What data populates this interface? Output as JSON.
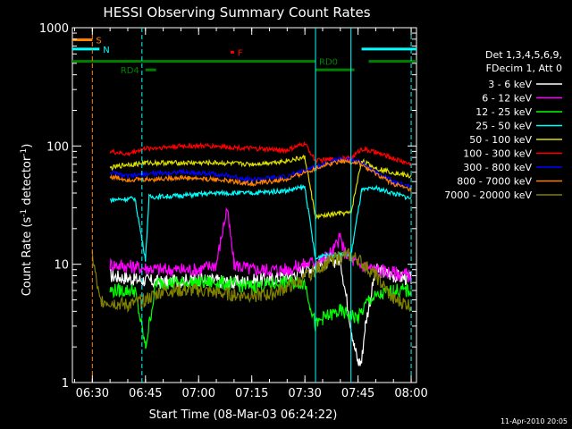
{
  "chart_data": {
    "type": "line",
    "title": "HESSI Observing Summary Count Rates",
    "xlabel": "Start Time (08-Mar-03 06:24:22)",
    "ylabel_main": "Count Rate (s",
    "ylabel_sup1": "-1",
    "ylabel_mid": " detector",
    "ylabel_sup2": "-1",
    "ylabel_end": ")",
    "footer": "11-Apr-2010 20:05",
    "yscale": "log",
    "ylim": [
      1,
      1000
    ],
    "xlim": [
      "06:24:22",
      "08:01:30"
    ],
    "x_ticks": [
      "06:30",
      "06:45",
      "07:00",
      "07:15",
      "07:30",
      "07:45",
      "08:00"
    ],
    "y_ticks": [
      "1",
      "10",
      "100",
      "1000"
    ],
    "legend_position": "right",
    "legend_header": [
      "Det 1,3,4,5,6,9,",
      "FDecim 1, Att 0"
    ],
    "series": [
      {
        "name": "3 - 6 keV",
        "color": "#ffffff",
        "points": [
          [
            "06:35",
            8
          ],
          [
            "06:42",
            7.5
          ],
          [
            "06:50",
            7
          ],
          [
            "07:00",
            7.5
          ],
          [
            "07:10",
            7
          ],
          [
            "07:20",
            7.5
          ],
          [
            "07:26",
            8
          ],
          [
            "07:30",
            9
          ],
          [
            "07:35",
            10
          ],
          [
            "07:40",
            11
          ],
          [
            "07:43",
            3
          ],
          [
            "07:44",
            2
          ],
          [
            "07:45",
            1.5
          ],
          [
            "07:46",
            1.5
          ],
          [
            "07:47",
            3
          ],
          [
            "07:50",
            9
          ],
          [
            "07:55",
            8
          ],
          [
            "08:00",
            7.5
          ]
        ]
      },
      {
        "name": "6 - 12 keV",
        "color": "#ff00ff",
        "points": [
          [
            "06:35",
            10
          ],
          [
            "06:42",
            9.5
          ],
          [
            "06:50",
            9
          ],
          [
            "07:00",
            9
          ],
          [
            "07:05",
            10
          ],
          [
            "07:08",
            30
          ],
          [
            "07:10",
            10
          ],
          [
            "07:15",
            9
          ],
          [
            "07:25",
            9
          ],
          [
            "07:30",
            10
          ],
          [
            "07:35",
            11
          ],
          [
            "07:38",
            13
          ],
          [
            "07:40",
            17
          ],
          [
            "07:41",
            13
          ],
          [
            "07:43",
            11
          ],
          [
            "07:45",
            10
          ],
          [
            "07:50",
            9
          ],
          [
            "08:00",
            8
          ]
        ]
      },
      {
        "name": "12 - 25 keV",
        "color": "#00ff00",
        "points": [
          [
            "06:35",
            6
          ],
          [
            "06:42",
            6
          ],
          [
            "06:45",
            2
          ],
          [
            "06:48",
            7
          ],
          [
            "06:55",
            7
          ],
          [
            "07:05",
            7
          ],
          [
            "07:15",
            6.5
          ],
          [
            "07:25",
            7
          ],
          [
            "07:30",
            7
          ],
          [
            "07:33",
            3
          ],
          [
            "07:35",
            3.5
          ],
          [
            "07:40",
            4
          ],
          [
            "07:45",
            3.5
          ],
          [
            "07:48",
            5
          ],
          [
            "07:55",
            6
          ],
          [
            "08:00",
            6
          ]
        ]
      },
      {
        "name": "25 - 50 keV",
        "color": "#00ffff",
        "points": [
          [
            "06:35",
            35
          ],
          [
            "06:42",
            36
          ],
          [
            "06:45",
            11
          ],
          [
            "06:46",
            37
          ],
          [
            "06:55",
            38
          ],
          [
            "07:05",
            40
          ],
          [
            "07:15",
            40
          ],
          [
            "07:25",
            42
          ],
          [
            "07:30",
            45
          ],
          [
            "07:33",
            11
          ],
          [
            "07:35",
            12
          ],
          [
            "07:40",
            12
          ],
          [
            "07:43",
            12
          ],
          [
            "07:46",
            42
          ],
          [
            "07:50",
            44
          ],
          [
            "08:00",
            36
          ]
        ]
      },
      {
        "name": "50 - 100 keV",
        "color": "#dddd00",
        "points": [
          [
            "06:35",
            65
          ],
          [
            "06:40",
            70
          ],
          [
            "06:42",
            70
          ],
          [
            "06:45",
            72
          ],
          [
            "06:55",
            72
          ],
          [
            "07:05",
            72
          ],
          [
            "07:15",
            70
          ],
          [
            "07:25",
            75
          ],
          [
            "07:30",
            80
          ],
          [
            "07:33",
            25
          ],
          [
            "07:40",
            27
          ],
          [
            "07:43",
            27
          ],
          [
            "07:46",
            75
          ],
          [
            "07:50",
            65
          ],
          [
            "08:00",
            55
          ]
        ]
      },
      {
        "name": "100 - 300 keV",
        "color": "#ff0000",
        "points": [
          [
            "06:35",
            90
          ],
          [
            "06:40",
            85
          ],
          [
            "06:42",
            90
          ],
          [
            "06:45",
            95
          ],
          [
            "06:55",
            100
          ],
          [
            "07:05",
            100
          ],
          [
            "07:15",
            95
          ],
          [
            "07:25",
            92
          ],
          [
            "07:30",
            105
          ],
          [
            "07:33",
            75
          ],
          [
            "07:40",
            78
          ],
          [
            "07:43",
            78
          ],
          [
            "07:46",
            95
          ],
          [
            "07:50",
            88
          ],
          [
            "08:00",
            70
          ]
        ]
      },
      {
        "name": "300 - 800 keV",
        "color": "#0000ff",
        "points": [
          [
            "06:35",
            60
          ],
          [
            "06:40",
            55
          ],
          [
            "06:45",
            58
          ],
          [
            "06:55",
            60
          ],
          [
            "07:05",
            58
          ],
          [
            "07:15",
            52
          ],
          [
            "07:25",
            55
          ],
          [
            "07:30",
            62
          ],
          [
            "07:35",
            70
          ],
          [
            "07:40",
            78
          ],
          [
            "07:45",
            75
          ],
          [
            "07:50",
            60
          ],
          [
            "07:55",
            50
          ],
          [
            "08:00",
            45
          ]
        ]
      },
      {
        "name": "800 - 7000 keV",
        "color": "#ff8000",
        "points": [
          [
            "06:35",
            55
          ],
          [
            "06:40",
            52
          ],
          [
            "06:45",
            52
          ],
          [
            "06:55",
            54
          ],
          [
            "07:05",
            52
          ],
          [
            "07:15",
            48
          ],
          [
            "07:25",
            52
          ],
          [
            "07:30",
            60
          ],
          [
            "07:35",
            68
          ],
          [
            "07:40",
            75
          ],
          [
            "07:45",
            72
          ],
          [
            "07:50",
            58
          ],
          [
            "07:55",
            48
          ],
          [
            "08:00",
            42
          ]
        ]
      },
      {
        "name": "7000 - 20000 keV",
        "color": "#808000",
        "points": [
          [
            "06:30",
            12
          ],
          [
            "06:32",
            5
          ],
          [
            "06:40",
            4.5
          ],
          [
            "06:45",
            5
          ],
          [
            "06:50",
            6
          ],
          [
            "07:00",
            6
          ],
          [
            "07:10",
            5.5
          ],
          [
            "07:20",
            5.5
          ],
          [
            "07:28",
            7
          ],
          [
            "07:33",
            9
          ],
          [
            "07:38",
            11
          ],
          [
            "07:42",
            12
          ],
          [
            "07:45",
            11
          ],
          [
            "07:50",
            8
          ],
          [
            "07:55",
            5
          ],
          [
            "08:00",
            4.5
          ]
        ]
      }
    ],
    "status_bars": [
      {
        "label": "S",
        "color": "#ff8000",
        "level": 790,
        "segments": [
          [
            "06:24:22",
            "06:30"
          ]
        ]
      },
      {
        "label": "N",
        "color": "#00ffff",
        "level": 660,
        "segments": [
          [
            "06:24:22",
            "06:32"
          ],
          [
            "07:46",
            "08:01:30"
          ]
        ]
      },
      {
        "label": "F",
        "color": "#ff0000",
        "level": 620,
        "segments": [
          [
            "07:09",
            "07:10"
          ]
        ]
      },
      {
        "label": "RD0",
        "color": "#008000",
        "level": 520,
        "segments": [
          [
            "06:24:22",
            "07:33"
          ],
          [
            "07:48",
            "08:01:30"
          ]
        ]
      },
      {
        "label": "RD4",
        "color": "#008000",
        "level": 440,
        "segments": [
          [
            "06:45",
            "06:48"
          ],
          [
            "07:33",
            "07:44"
          ]
        ]
      }
    ],
    "markers": [
      {
        "time": "06:30",
        "color": "#ff8000",
        "style": "dashed"
      },
      {
        "time": "06:44",
        "color": "#00ffff",
        "style": "dashed"
      },
      {
        "time": "07:33",
        "color": "#00ffff",
        "style": "solid"
      },
      {
        "time": "07:43",
        "color": "#00ffff",
        "style": "solid"
      },
      {
        "time": "08:00",
        "color": "#00ffff",
        "style": "dashed"
      }
    ]
  }
}
